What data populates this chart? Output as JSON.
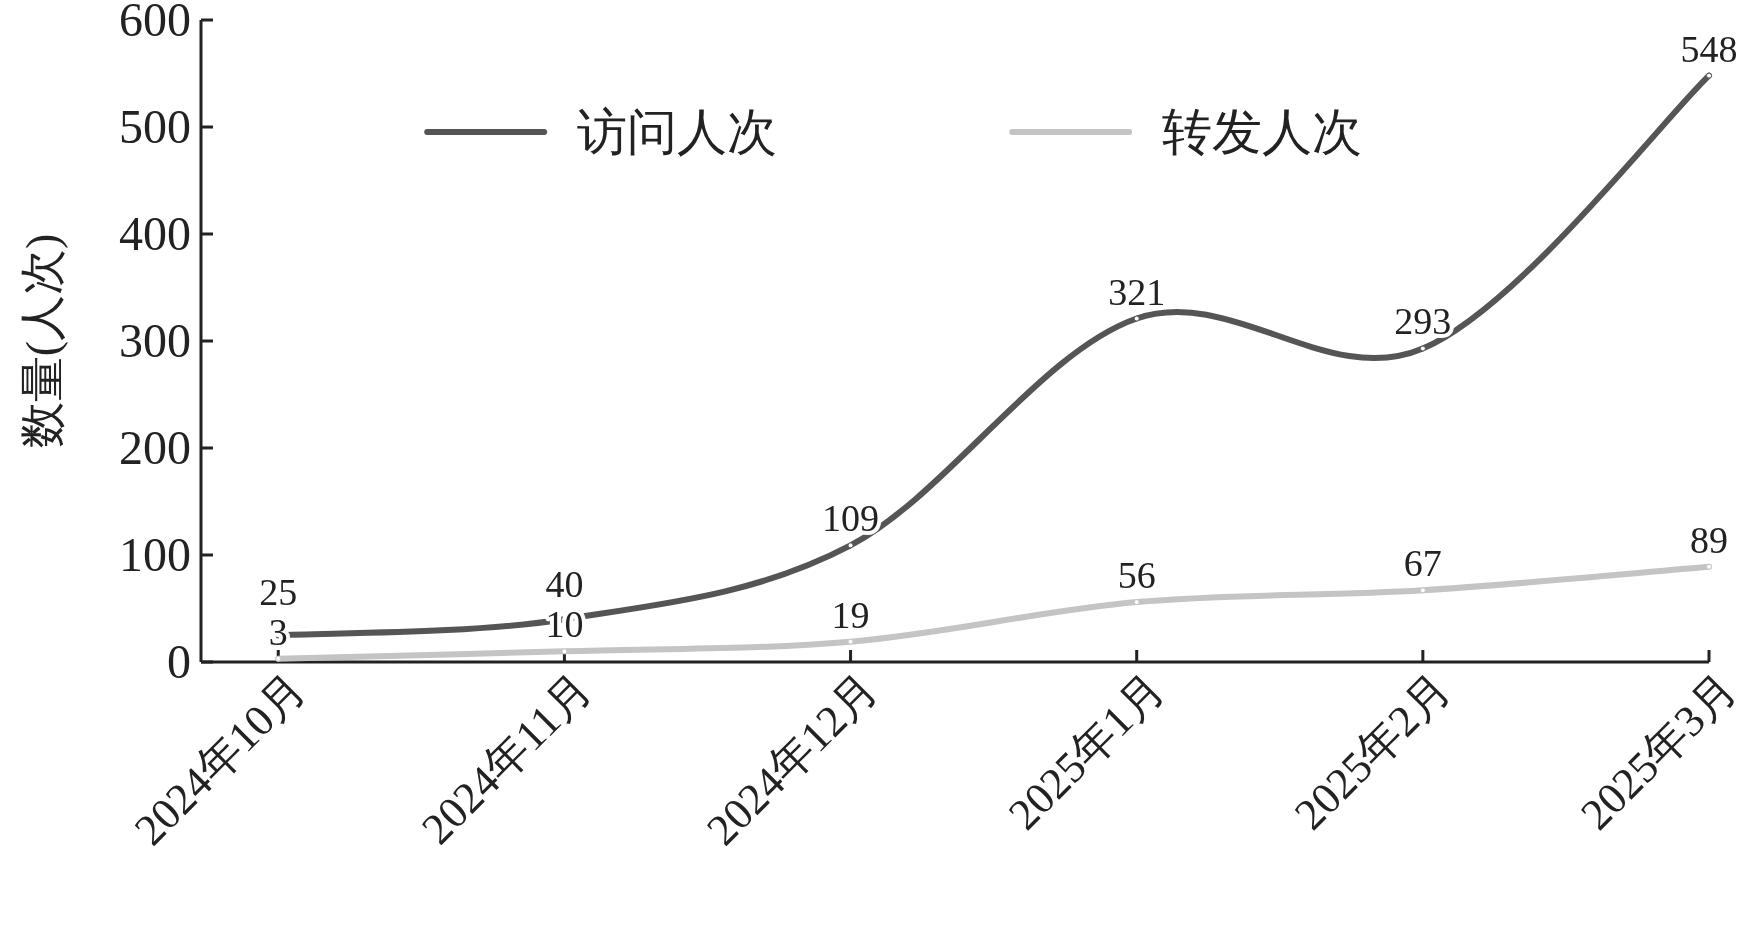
{
  "chart_data": {
    "type": "line",
    "ylabel": "数量(人次)",
    "categories": [
      "2024年10月",
      "2024年11月",
      "2024年12月",
      "2025年1月",
      "2025年2月",
      "2025年3月"
    ],
    "series": [
      {
        "name": "访问人次",
        "color": "#555555",
        "values": [
          25,
          40,
          109,
          321,
          293,
          548
        ]
      },
      {
        "name": "转发人次",
        "color": "#c4c4c4",
        "values": [
          3,
          10,
          19,
          56,
          67,
          89
        ]
      }
    ],
    "ylim": [
      0,
      600
    ],
    "yticks": [
      0,
      100,
      200,
      300,
      400,
      500,
      600
    ],
    "data_labels": true,
    "legend": "top",
    "grid": false,
    "marker": "circle",
    "line_style": "solid"
  }
}
